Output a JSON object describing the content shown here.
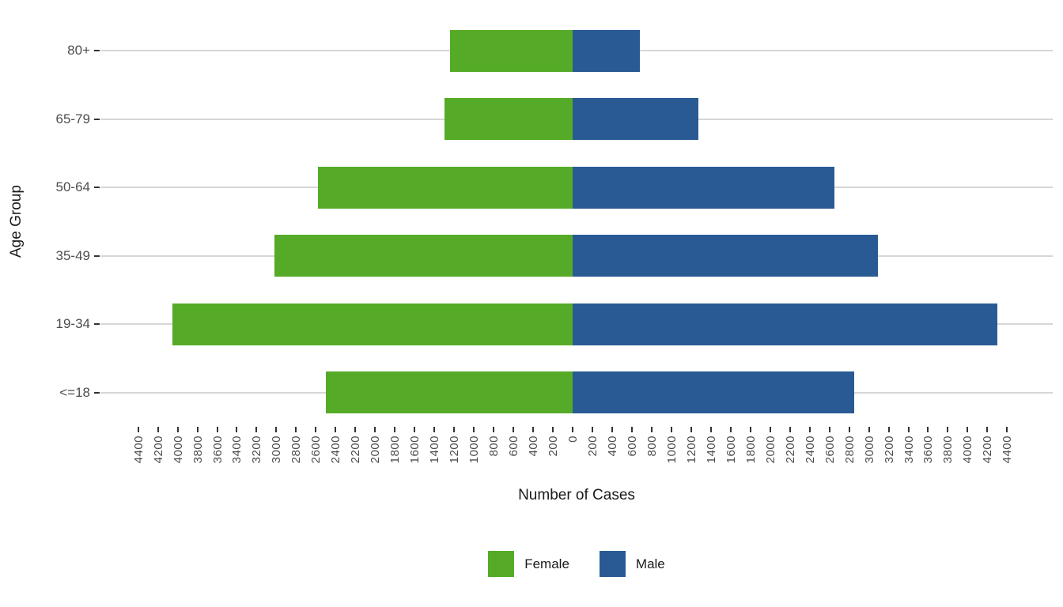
{
  "chart_data": {
    "type": "bar",
    "subtype": "diverging-population-pyramid",
    "orientation": "horizontal",
    "title": "",
    "xlabel": "Number of Cases",
    "ylabel": "Age Group",
    "categories_top_to_bottom": [
      "80+",
      "65-79",
      "50-64",
      "35-49",
      "19-34",
      "<=18"
    ],
    "series": [
      {
        "name": "Female",
        "color": "#55AB27",
        "direction": "left",
        "values": [
          1240,
          1300,
          2580,
          3020,
          4050,
          2500
        ]
      },
      {
        "name": "Male",
        "color": "#2A5A94",
        "direction": "right",
        "values": [
          680,
          1270,
          2650,
          3090,
          4300,
          2850
        ]
      }
    ],
    "x_axis": {
      "min": -4400,
      "max": 4400,
      "tick_step": 200,
      "tick_labels_absolute": true,
      "tick_label_rotation_deg": 90
    },
    "legend": {
      "position": "bottom",
      "entries": [
        "Female",
        "Male"
      ]
    },
    "grid": {
      "horizontal": true,
      "vertical": false,
      "color": "#D6D6D6"
    },
    "appearance": {
      "background": "#FFFFFF",
      "axis_text_color": "#4D4D4D",
      "title_text_color": "#1A1A1A",
      "tick_mark_color": "#333333"
    }
  }
}
